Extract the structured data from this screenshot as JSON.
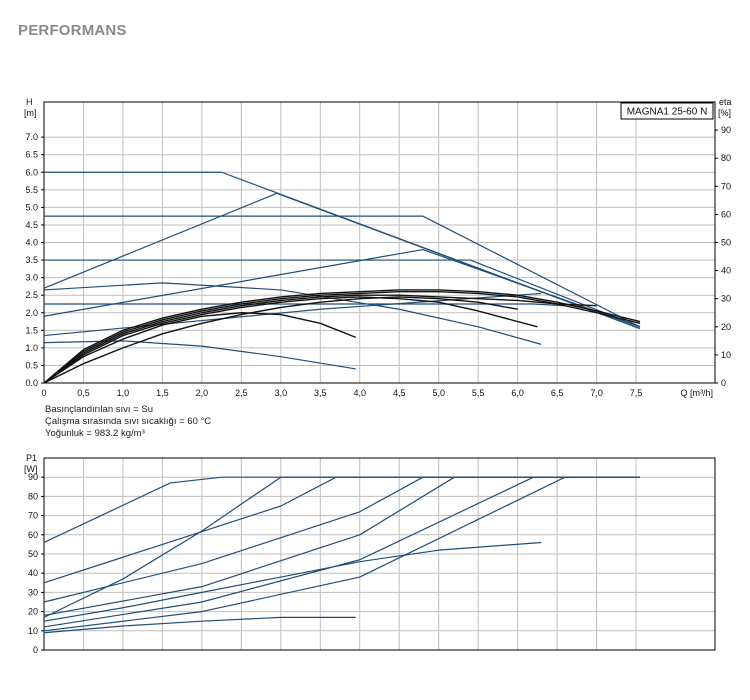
{
  "page_title": "PERFORMANS",
  "notes": [
    "Basınçlandırılan sıvı = Su",
    "Çalışma sırasında sıvı sıcaklığı = 60 °C",
    "Yoğunluk = 983.2 kg/m³"
  ],
  "colors": {
    "curve": "#1f4e79",
    "efficiency": "#111111",
    "grid": "#bfbfbf",
    "axis": "#000000"
  },
  "chart_data": [
    {
      "type": "line",
      "model_label": "MAGNA1 25-60 N",
      "y_label_top": "H",
      "y_label_unit": "[m]",
      "y2_label_top": "eta",
      "y2_label_unit": "[%]",
      "x_label": "Q [m³/h]",
      "xlim": [
        0,
        8.5
      ],
      "ylim": [
        0,
        8
      ],
      "y2lim": [
        0,
        100
      ],
      "x_ticks": [
        0,
        0.5,
        1.0,
        1.5,
        2.0,
        2.5,
        3.0,
        3.5,
        4.0,
        4.5,
        5.0,
        5.5,
        6.0,
        6.5,
        7.0,
        7.5
      ],
      "x_tick_labels": [
        "0",
        "0,5",
        "1,0",
        "1,5",
        "2,0",
        "2,5",
        "3,0",
        "3,5",
        "4,0",
        "4,5",
        "5,0",
        "5,5",
        "6,0",
        "6,5",
        "7,0",
        "7,5"
      ],
      "y_ticks": [
        0,
        0.5,
        1.0,
        1.5,
        2.0,
        2.5,
        3.0,
        3.5,
        4.0,
        4.5,
        5.0,
        5.5,
        6.0,
        6.5,
        7.0
      ],
      "y_tick_labels": [
        "0.0",
        "0.5",
        "1.0",
        "1.5",
        "2.0",
        "2.5",
        "3.0",
        "3.5",
        "4.0",
        "4.5",
        "5.0",
        "5.5",
        "6.0",
        "6.5",
        "7.0"
      ],
      "y2_ticks": [
        0,
        10,
        20,
        30,
        40,
        50,
        60,
        70,
        80,
        90
      ],
      "y2_tick_labels": [
        "0",
        "10",
        "20",
        "30",
        "40",
        "50",
        "60",
        "70",
        "80",
        "90"
      ],
      "grid": true,
      "series": [
        {
          "role": "head",
          "x": [
            0,
            2.25,
            7.55
          ],
          "y": [
            6.0,
            6.0,
            1.55
          ]
        },
        {
          "role": "head",
          "x": [
            0,
            4.8,
            7.55
          ],
          "y": [
            4.75,
            4.75,
            1.6
          ]
        },
        {
          "role": "head",
          "x": [
            0,
            5.4,
            7.55
          ],
          "y": [
            3.5,
            3.5,
            1.6
          ]
        },
        {
          "role": "head",
          "x": [
            0,
            6.2,
            6.6
          ],
          "y": [
            2.25,
            2.25,
            2.2
          ]
        },
        {
          "role": "head",
          "x": [
            0,
            2.95,
            7.55
          ],
          "y": [
            2.7,
            5.4,
            1.55
          ]
        },
        {
          "role": "head",
          "x": [
            0,
            4.8,
            7.55
          ],
          "y": [
            1.9,
            3.8,
            1.6
          ]
        },
        {
          "role": "head",
          "x": [
            0,
            3.5,
            6.3
          ],
          "y": [
            1.35,
            2.1,
            2.55
          ]
        },
        {
          "role": "head",
          "x": [
            0,
            1.5,
            3.0,
            4.5,
            5.5,
            6.3
          ],
          "y": [
            2.65,
            2.85,
            2.65,
            2.1,
            1.6,
            1.1
          ]
        },
        {
          "role": "head",
          "x": [
            0,
            1.0,
            2.0,
            3.0,
            3.95
          ],
          "y": [
            1.15,
            1.2,
            1.05,
            0.75,
            0.4
          ]
        },
        {
          "role": "efficiency",
          "x": [
            0,
            0.5,
            1.0,
            1.5,
            2.0,
            2.5,
            3.0,
            3.5,
            4.0,
            4.5,
            5.0,
            5.5,
            6.0,
            6.5,
            7.0,
            7.55
          ],
          "y": [
            0,
            0.95,
            1.5,
            1.85,
            2.1,
            2.3,
            2.45,
            2.55,
            2.6,
            2.65,
            2.65,
            2.6,
            2.5,
            2.3,
            2.05,
            1.75
          ]
        },
        {
          "role": "efficiency",
          "x": [
            0,
            0.5,
            1.0,
            1.5,
            2.0,
            2.5,
            3.0,
            3.5,
            4.0,
            4.5,
            5.0,
            5.5,
            6.0,
            6.5,
            7.0,
            7.55
          ],
          "y": [
            0,
            0.9,
            1.45,
            1.8,
            2.05,
            2.25,
            2.4,
            2.5,
            2.55,
            2.6,
            2.6,
            2.55,
            2.45,
            2.25,
            2.0,
            1.7
          ]
        },
        {
          "role": "efficiency",
          "x": [
            0,
            0.5,
            1.0,
            1.5,
            2.0,
            2.5,
            3.0,
            3.5,
            4.0,
            4.5,
            5.0,
            5.5,
            6.0,
            6.5,
            7.0
          ],
          "y": [
            0,
            0.85,
            1.4,
            1.75,
            2.0,
            2.2,
            2.35,
            2.45,
            2.5,
            2.5,
            2.45,
            2.4,
            2.35,
            2.25,
            2.2
          ]
        },
        {
          "role": "efficiency",
          "x": [
            0,
            0.5,
            1.0,
            1.5,
            2.0,
            2.5,
            3.0,
            3.5,
            4.0,
            4.5,
            5.0,
            5.5,
            6.25
          ],
          "y": [
            0,
            0.8,
            1.35,
            1.7,
            1.95,
            2.15,
            2.3,
            2.4,
            2.45,
            2.4,
            2.3,
            2.05,
            1.6
          ]
        },
        {
          "role": "efficiency",
          "x": [
            0,
            0.5,
            1.0,
            1.5,
            2.0,
            2.5,
            3.0,
            3.5,
            3.95
          ],
          "y": [
            0,
            0.75,
            1.25,
            1.65,
            1.9,
            2.0,
            1.95,
            1.7,
            1.3
          ]
        },
        {
          "role": "efficiency",
          "x": [
            0,
            0.5,
            1.0,
            1.5,
            2.0,
            2.5,
            3.0,
            3.5,
            4.0,
            4.5,
            5.0,
            5.5,
            6.0
          ],
          "y": [
            0,
            0.55,
            1.0,
            1.4,
            1.7,
            1.95,
            2.15,
            2.3,
            2.4,
            2.45,
            2.4,
            2.3,
            2.1
          ]
        }
      ]
    },
    {
      "type": "line",
      "y_label_top": "P1",
      "y_label_unit": "[W]",
      "xlim": [
        0,
        8.5
      ],
      "ylim": [
        0,
        100
      ],
      "x_ticks": [
        0,
        0.5,
        1.0,
        1.5,
        2.0,
        2.5,
        3.0,
        3.5,
        4.0,
        4.5,
        5.0,
        5.5,
        6.0,
        6.5,
        7.0,
        7.5
      ],
      "y_ticks": [
        0,
        10,
        20,
        30,
        40,
        50,
        60,
        70,
        80,
        90
      ],
      "y_tick_labels": [
        "0",
        "10",
        "20",
        "30",
        "40",
        "50",
        "60",
        "70",
        "80",
        "90"
      ],
      "grid": true,
      "series": [
        {
          "role": "power",
          "x": [
            0,
            1.6,
            2.25,
            7.55
          ],
          "y": [
            56,
            87,
            90,
            90
          ]
        },
        {
          "role": "power",
          "x": [
            0,
            1.5,
            3.0,
            3.7,
            7.55
          ],
          "y": [
            35,
            55,
            75,
            90,
            90
          ]
        },
        {
          "role": "power",
          "x": [
            0,
            1.0,
            2.0,
            3.0,
            7.55
          ],
          "y": [
            17,
            37,
            62,
            90,
            90
          ]
        },
        {
          "role": "power",
          "x": [
            0,
            2.0,
            4.0,
            4.8,
            7.55
          ],
          "y": [
            25,
            45,
            72,
            90,
            90
          ]
        },
        {
          "role": "power",
          "x": [
            0,
            2.0,
            4.0,
            5.2,
            7.55
          ],
          "y": [
            18,
            33,
            60,
            90,
            90
          ]
        },
        {
          "role": "power",
          "x": [
            0,
            2.0,
            4.0,
            6.2,
            7.55
          ],
          "y": [
            12,
            25,
            47,
            90,
            90
          ]
        },
        {
          "role": "power",
          "x": [
            0,
            2.0,
            4.0,
            6.6,
            7.55
          ],
          "y": [
            10,
            20,
            38,
            90,
            90
          ]
        },
        {
          "role": "power",
          "x": [
            0,
            1.0,
            2.0,
            3.0,
            4.0,
            5.0,
            6.3
          ],
          "y": [
            15,
            22,
            30,
            38,
            46,
            52,
            56
          ]
        },
        {
          "role": "power",
          "x": [
            0,
            1.0,
            2.0,
            3.0,
            3.95
          ],
          "y": [
            9,
            12.5,
            15,
            17,
            17
          ]
        }
      ]
    }
  ]
}
